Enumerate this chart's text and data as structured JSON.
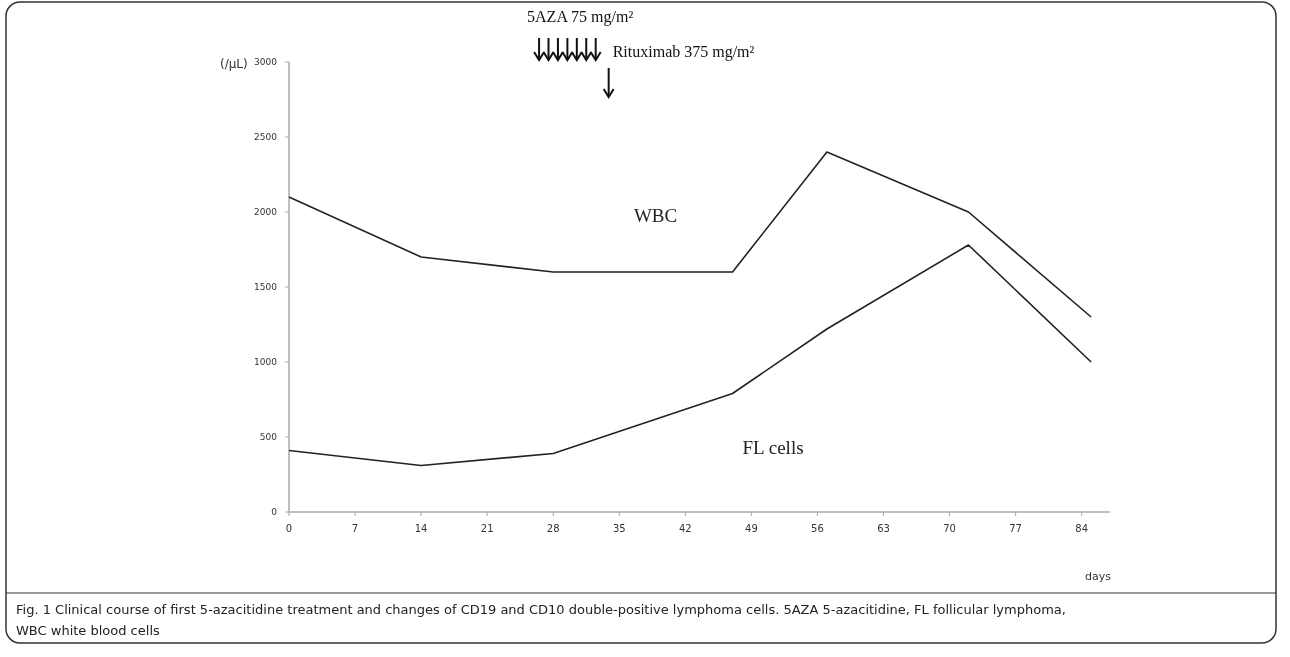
{
  "chart_data": {
    "type": "line",
    "xlabel": "days",
    "ylabel": "(/μL)",
    "x": [
      0,
      14,
      28,
      47,
      57,
      72,
      85
    ],
    "series": [
      {
        "name": "WBC",
        "color": "#222222",
        "values": [
          2100,
          1700,
          1600,
          1600,
          2400,
          2000,
          1300
        ]
      },
      {
        "name": "FL cells",
        "color": "#222222",
        "values": [
          410,
          310,
          390,
          790,
          1220,
          1780,
          1000
        ]
      }
    ],
    "xlim": [
      0,
      87
    ],
    "xticks": [
      0,
      7,
      14,
      21,
      28,
      35,
      42,
      49,
      56,
      63,
      70,
      77,
      84
    ],
    "ylim": [
      0,
      3000
    ],
    "yticks": [
      0,
      500,
      1000,
      1500,
      2000,
      2500,
      3000
    ],
    "grid": false,
    "marker": "none",
    "line_style": "solid",
    "annotations": [
      "5AZA 75 mg/m²",
      "Rituximab 375 mg/m²",
      "Fig. 1 Clinical course of first 5-azacitidine treatment and changes of CD19 and CD10 double-positive lymphoma cells. 5AZA 5-azacitidine, FL follicular lymphoma, WBC white blood cells"
    ]
  }
}
